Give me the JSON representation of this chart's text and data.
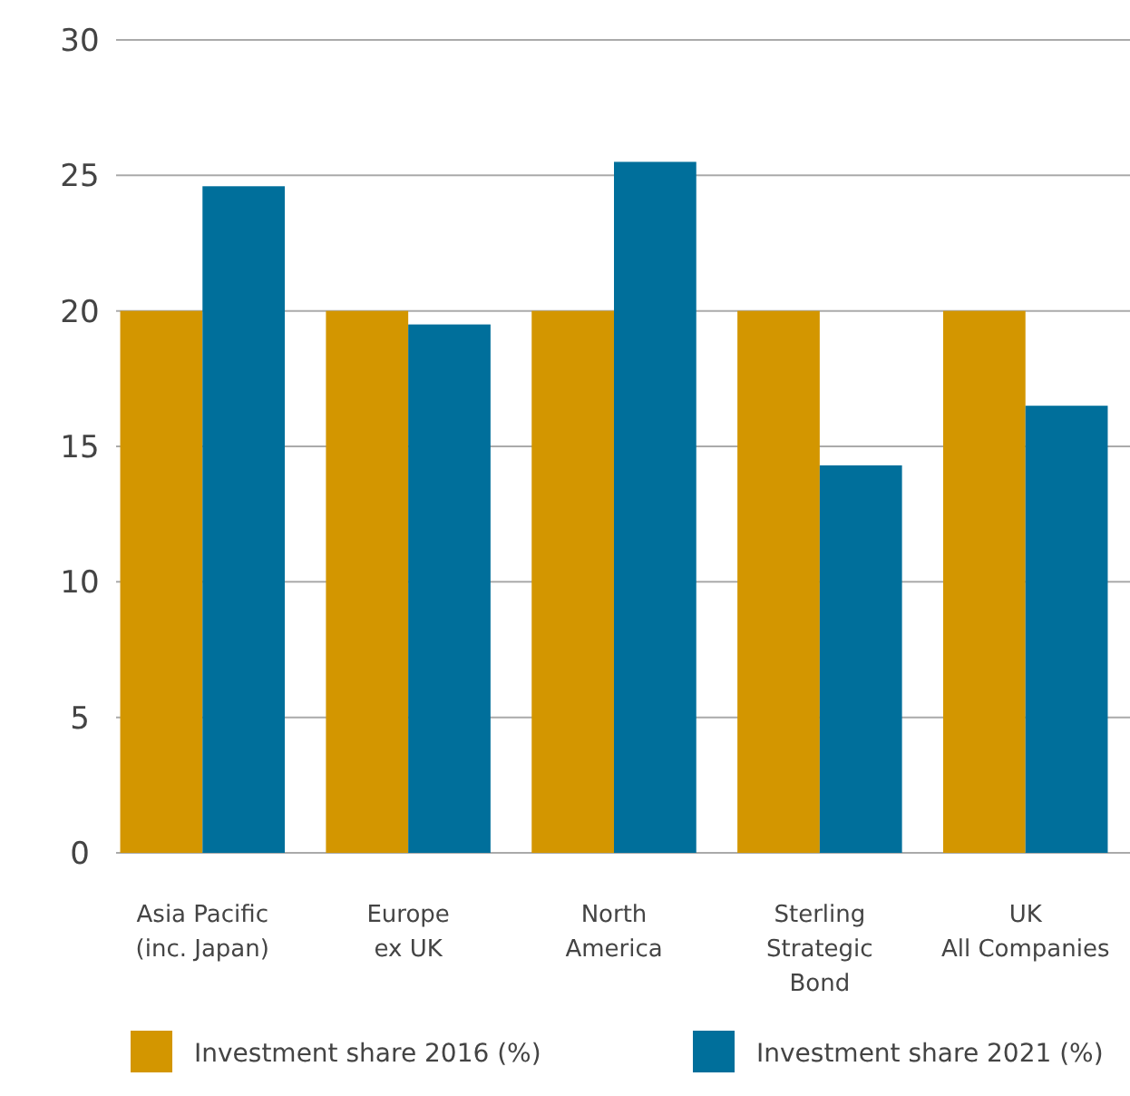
{
  "chart_data": {
    "type": "bar",
    "categories": [
      "Asia Pacific\n(inc. Japan)",
      "Europe\nex UK",
      "North\nAmerica",
      "Sterling\nStrategic\nBond",
      "UK\nAll Companies"
    ],
    "series": [
      {
        "name": "Investment share 2016 (%)",
        "color": "#d39600",
        "values": [
          20,
          20,
          20,
          20,
          20
        ]
      },
      {
        "name": "Investment share 2021 (%)",
        "color": "#006f9b",
        "values": [
          24.6,
          19.5,
          25.5,
          14.3,
          16.5
        ]
      }
    ],
    "ylim": [
      0,
      30
    ],
    "yticks": [
      0,
      5,
      10,
      15,
      20,
      25,
      30
    ],
    "grid": "y",
    "legend": "bottom"
  }
}
